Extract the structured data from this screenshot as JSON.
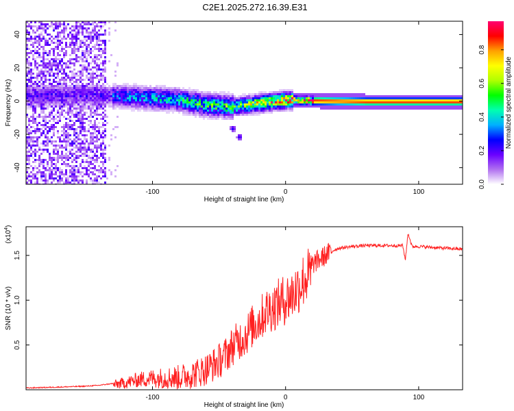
{
  "title": "C2E1.2025.272.16.39.E31",
  "chart_data": [
    {
      "type": "heatmap",
      "title": "C2E1.2025.272.16.39.E31",
      "xlabel": "Height of straight line (km)",
      "ylabel": "Frequency (Hz)",
      "xlim": [
        -195,
        133
      ],
      "ylim": [
        -50,
        48
      ],
      "xticks": [
        "-100",
        "0",
        "100"
      ],
      "xtick_values": [
        -100,
        0,
        100
      ],
      "yticks": [
        "40",
        "20",
        "0",
        "-20",
        "-40"
      ],
      "ytick_values": [
        40,
        20,
        0,
        -20,
        -40
      ],
      "colorbar": {
        "label": "Normalized spectral amplitude",
        "range": [
          0,
          0.97
        ],
        "ticks": [
          "0.0",
          "0.2",
          "0.4",
          "0.6",
          "0.8"
        ],
        "tick_values": [
          0.0,
          0.2,
          0.4,
          0.6,
          0.8
        ],
        "colors": [
          "#ffffff",
          "#b070f0",
          "#6a00ff",
          "#0000ff",
          "#00b0ff",
          "#00ffb0",
          "#00ff00",
          "#b0ff00",
          "#ffff00",
          "#ffa000",
          "#ff0000",
          "#ff0070"
        ]
      },
      "ridge": {
        "description": "dominant frequency band",
        "points": [
          [
            -195,
            3
          ],
          [
            -150,
            4
          ],
          [
            -120,
            3
          ],
          [
            -100,
            2
          ],
          [
            -80,
            1
          ],
          [
            -60,
            -2
          ],
          [
            -40,
            -3
          ],
          [
            -20,
            -1
          ],
          [
            0,
            1
          ],
          [
            20,
            0.5
          ],
          [
            60,
            0
          ],
          [
            133,
            0
          ]
        ]
      },
      "branch": {
        "points": [
          [
            -50,
            -6
          ],
          [
            -40,
            -16
          ],
          [
            -35,
            -21
          ]
        ]
      },
      "noise_region": {
        "x_range": [
          -195,
          -135
        ],
        "y_range": [
          -50,
          48
        ]
      }
    },
    {
      "type": "line",
      "title": "",
      "xlabel": "Height of straight line (km)",
      "ylabel": "SNR (10 * v/v)",
      "y_multiplier_label": "(x10",
      "y_multiplier_exponent": "4",
      "xlim": [
        -195,
        133
      ],
      "ylim": [
        0,
        1.82
      ],
      "xticks": [
        "-100",
        "0",
        "100"
      ],
      "xtick_values": [
        -100,
        0,
        100
      ],
      "yticks": [
        "1.5",
        "1.0",
        "0.5"
      ],
      "ytick_values": [
        1.5,
        1.0,
        0.5
      ],
      "color": "#ff2020",
      "series": [
        {
          "name": "SNR",
          "x": [
            -195,
            -170,
            -150,
            -140,
            -130,
            -120,
            -110,
            -100,
            -90,
            -80,
            -70,
            -60,
            -50,
            -45,
            -40,
            -35,
            -30,
            -25,
            -20,
            -15,
            -10,
            -5,
            0,
            5,
            10,
            15,
            20,
            25,
            30,
            35,
            40,
            50,
            60,
            70,
            80,
            88,
            90,
            92,
            95,
            100,
            110,
            120,
            133
          ],
          "values": [
            0.02,
            0.03,
            0.04,
            0.05,
            0.07,
            0.1,
            0.14,
            0.16,
            0.17,
            0.18,
            0.22,
            0.28,
            0.38,
            0.45,
            0.55,
            0.62,
            0.68,
            0.78,
            0.85,
            0.95,
            1.0,
            1.05,
            1.1,
            1.15,
            1.25,
            1.35,
            1.4,
            1.45,
            1.5,
            1.55,
            1.58,
            1.6,
            1.61,
            1.61,
            1.61,
            1.61,
            1.45,
            1.75,
            1.6,
            1.6,
            1.59,
            1.58,
            1.57
          ]
        }
      ]
    }
  ]
}
